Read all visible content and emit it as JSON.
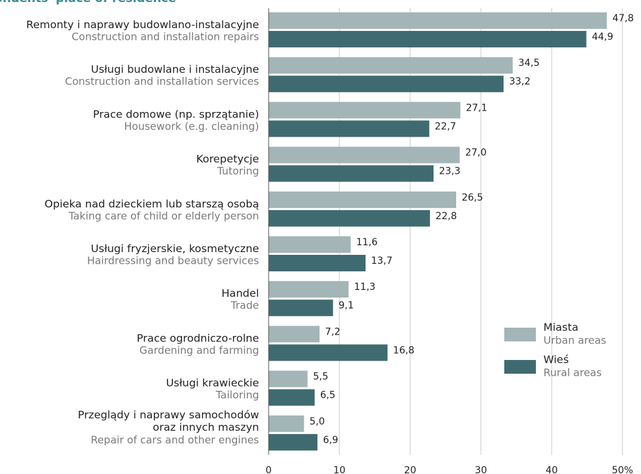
{
  "chart_data": {
    "type": "bar",
    "orientation": "horizontal",
    "title": "pondents' place of residence",
    "categories": [
      "Remonty i naprawy budowlano-instalacyjne",
      "Usługi budowlane i instalacyjne",
      "Prace domowe (np. sprzątanie)",
      "Korepetycje",
      "Opieka nad dzieckiem lub starszą osobą",
      "Usługi fryzjerskie, kosmetyczne",
      "Handel",
      "Prace ogrodniczo-rolne",
      "Usługi krawieckie",
      "Przeglądy i naprawy samochodów\noraz innych maszyn"
    ],
    "categories_en": [
      "Construction and installation repairs",
      "Construction and installation services",
      "Housework (e.g. cleaning)",
      "Tutoring",
      "Taking care of child or elderly person",
      "Hairdressing and beauty services",
      "Trade",
      "Gardening and farming",
      "Tailoring",
      "Repair of cars and other engines"
    ],
    "series": [
      {
        "name": "Miasta",
        "name_en": "Urban areas",
        "color": "#a3b5b7",
        "values": [
          47.8,
          34.5,
          27.1,
          27.0,
          26.5,
          11.6,
          11.3,
          7.2,
          5.5,
          5.0
        ],
        "value_labels": [
          "47,8",
          "34,5",
          "27,1",
          "27,0",
          "26,5",
          "11,6",
          "11,3",
          "7,2",
          "5,5",
          "5,0"
        ]
      },
      {
        "name": "Wieś",
        "name_en": "Rural areas",
        "color": "#3f6b70",
        "values": [
          44.9,
          33.2,
          22.7,
          23.3,
          22.8,
          13.7,
          9.1,
          16.8,
          6.5,
          6.9
        ],
        "value_labels": [
          "44,9",
          "33,2",
          "22,7",
          "23,3",
          "22,8",
          "13,7",
          "9,1",
          "16,8",
          "6,5",
          "6,9"
        ]
      }
    ],
    "xlim": [
      0,
      50
    ],
    "xticks": [
      0,
      10,
      20,
      30,
      40,
      {
        "value": 50,
        "label": "50%"
      }
    ],
    "grid": true,
    "legend": "right"
  }
}
